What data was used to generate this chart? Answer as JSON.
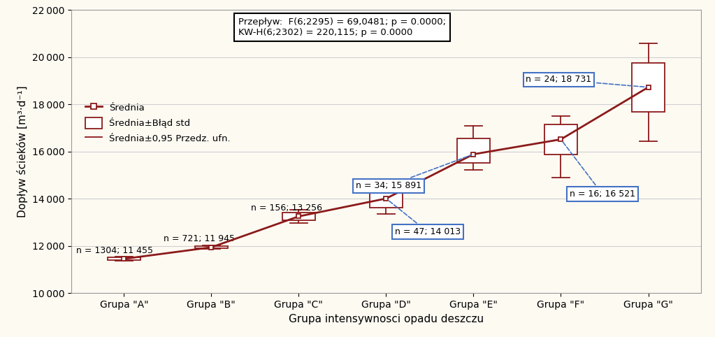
{
  "groups": [
    "Grupa \"A\"",
    "Grupa \"B\"",
    "Grupa \"C\"",
    "Grupa \"D\"",
    "Grupa \"E\"",
    "Grupa \"F\"",
    "Grupa \"G\""
  ],
  "means": [
    11455,
    11945,
    13256,
    14013,
    15891,
    16521,
    18731
  ],
  "n_labels": [
    "n = 1304; 11 455",
    "n = 721; 11 945",
    "n = 156; 13 256",
    "n = 47; 14 013",
    "n = 34; 15 891",
    "n = 16; 16 521",
    "n = 24; 18 731"
  ],
  "std_lower": [
    11390,
    11895,
    13090,
    13630,
    15530,
    15870,
    17700
  ],
  "std_upper": [
    11520,
    11995,
    13420,
    14380,
    16570,
    17150,
    19750
  ],
  "ci_lower": [
    11360,
    11870,
    12980,
    13360,
    15230,
    14900,
    16450
  ],
  "ci_upper": [
    11550,
    12020,
    13540,
    14640,
    17100,
    17500,
    20600
  ],
  "box_color": "#8B1A1A",
  "bg_color": "#FDFAF2",
  "grid_color": "#D0D0D0",
  "xlabel": "Grupa intensywnosci opadu deszczu",
  "ylabel": "Dopływ ścieków [m³·d⁻¹]",
  "ylim": [
    10000,
    22000
  ],
  "yticks": [
    10000,
    12000,
    14000,
    16000,
    18000,
    20000,
    22000
  ],
  "stat_text": "Przepływ:  F(6;2295) = 69,0481; p = 0.0000;\nKW-H(6;2302) = 220,115; p = 0.0000",
  "fontsize": 10
}
